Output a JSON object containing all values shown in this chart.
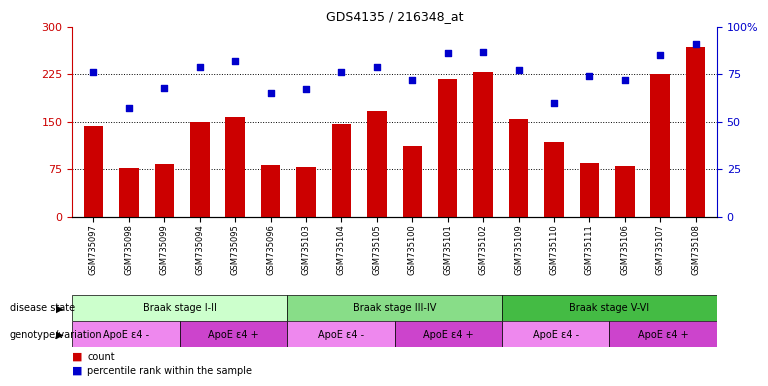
{
  "title": "GDS4135 / 216348_at",
  "samples": [
    "GSM735097",
    "GSM735098",
    "GSM735099",
    "GSM735094",
    "GSM735095",
    "GSM735096",
    "GSM735103",
    "GSM735104",
    "GSM735105",
    "GSM735100",
    "GSM735101",
    "GSM735102",
    "GSM735109",
    "GSM735110",
    "GSM735111",
    "GSM735106",
    "GSM735107",
    "GSM735108"
  ],
  "counts": [
    143,
    76,
    83,
    149,
    158,
    82,
    79,
    147,
    167,
    112,
    218,
    228,
    155,
    118,
    84,
    80,
    225,
    268
  ],
  "percentiles": [
    76,
    57,
    68,
    79,
    82,
    65,
    67,
    76,
    79,
    72,
    86,
    87,
    77,
    60,
    74,
    72,
    85,
    91
  ],
  "bar_color": "#cc0000",
  "dot_color": "#0000cc",
  "left_ylim": [
    0,
    300
  ],
  "right_ylim": [
    0,
    100
  ],
  "left_yticks": [
    0,
    75,
    150,
    225,
    300
  ],
  "right_yticks": [
    0,
    25,
    50,
    75,
    100
  ],
  "right_yticklabels": [
    "0",
    "25",
    "50",
    "75",
    "100%"
  ],
  "hlines": [
    75,
    150,
    225
  ],
  "disease_state_groups": [
    {
      "label": "Braak stage I-II",
      "start": 0,
      "end": 6,
      "color": "#ccffcc"
    },
    {
      "label": "Braak stage III-IV",
      "start": 6,
      "end": 12,
      "color": "#88dd88"
    },
    {
      "label": "Braak stage V-VI",
      "start": 12,
      "end": 18,
      "color": "#44bb44"
    }
  ],
  "genotype_groups": [
    {
      "label": "ApoE ε4 -",
      "start": 0,
      "end": 3,
      "color": "#ee88ee"
    },
    {
      "label": "ApoE ε4 +",
      "start": 3,
      "end": 6,
      "color": "#cc44cc"
    },
    {
      "label": "ApoE ε4 -",
      "start": 6,
      "end": 9,
      "color": "#ee88ee"
    },
    {
      "label": "ApoE ε4 +",
      "start": 9,
      "end": 12,
      "color": "#cc44cc"
    },
    {
      "label": "ApoE ε4 -",
      "start": 12,
      "end": 15,
      "color": "#ee88ee"
    },
    {
      "label": "ApoE ε4 +",
      "start": 15,
      "end": 18,
      "color": "#cc44cc"
    }
  ],
  "disease_state_label": "disease state",
  "genotype_label": "genotype/variation",
  "legend_count_label": "count",
  "legend_percentile_label": "percentile rank within the sample",
  "background_color": "#ffffff",
  "tick_label_color_left": "#cc0000",
  "tick_label_color_right": "#0000cc"
}
